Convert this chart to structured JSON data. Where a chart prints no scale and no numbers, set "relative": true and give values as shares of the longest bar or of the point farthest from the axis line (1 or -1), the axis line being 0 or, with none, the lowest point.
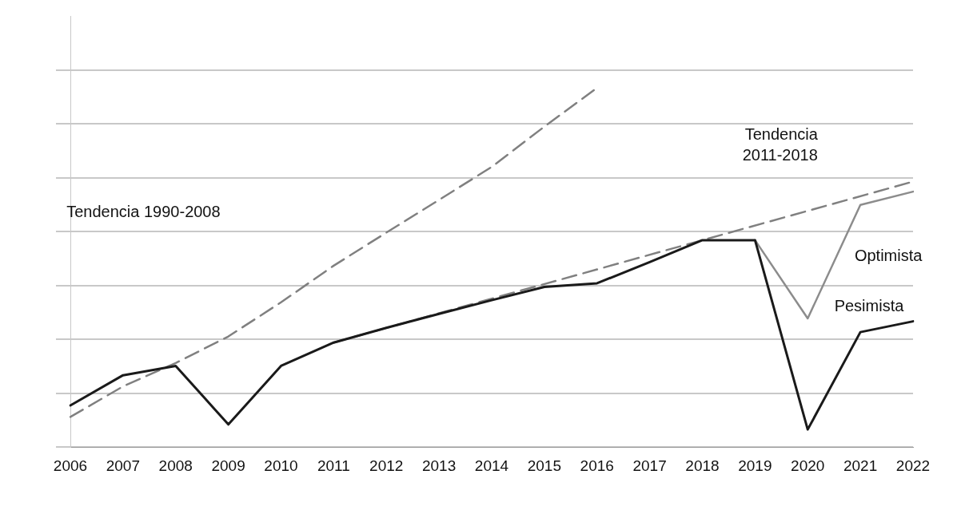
{
  "chart_data": {
    "type": "line",
    "relative": true,
    "grid": "y",
    "legend": false,
    "marker": "none",
    "categories": [
      "2006",
      "2007",
      "2008",
      "2009",
      "2010",
      "2011",
      "2012",
      "2013",
      "2014",
      "2015",
      "2016",
      "2017",
      "2018",
      "2019",
      "2020",
      "2021",
      "2022"
    ],
    "series": [
      {
        "name": "Tendencia 1990-2008",
        "color": "#808080",
        "line_style": "dashed",
        "values": [
          0.084,
          0.169,
          0.234,
          0.308,
          0.403,
          0.505,
          0.597,
          0.688,
          0.78,
          0.892,
          1,
          null,
          null,
          null,
          null,
          null,
          null
        ]
      },
      {
        "name": "Tendencia 2011-2018",
        "color": "#808080",
        "line_style": "dashed",
        "values": [
          null,
          null,
          null,
          null,
          null,
          0.291,
          null,
          null,
          null,
          null,
          null,
          null,
          0.576,
          null,
          null,
          null,
          0.739
        ]
      },
      {
        "name": "Optimista",
        "color": "#8c8c8c",
        "line_style": "solid",
        "values": [
          null,
          null,
          null,
          null,
          null,
          null,
          null,
          null,
          null,
          null,
          null,
          null,
          null,
          0.576,
          0.358,
          0.674,
          0.711
        ]
      },
      {
        "name": "Pesimista",
        "color": "#1a1a1a",
        "line_style": "solid",
        "values": [
          0.116,
          0.2,
          0.226,
          0.063,
          0.226,
          0.291,
          0.332,
          0.371,
          0.409,
          0.446,
          0.456,
          0.515,
          0.576,
          0.576,
          0.049,
          0.32,
          0.35
        ]
      }
    ]
  }
}
